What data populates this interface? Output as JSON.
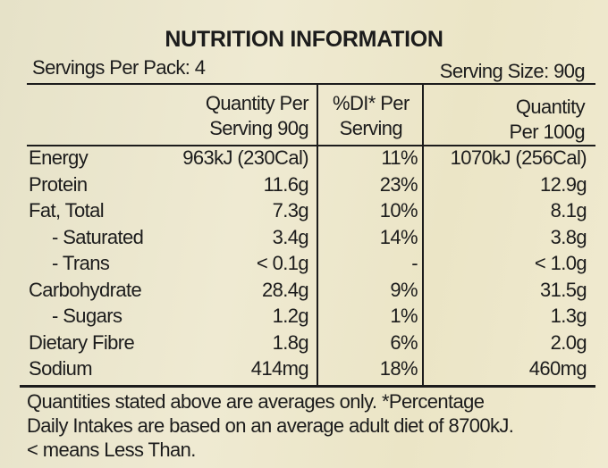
{
  "title": "NUTRITION INFORMATION",
  "servings_per_pack": "Servings Per Pack: 4",
  "serving_size": "Serving Size: 90g",
  "headers": {
    "col1": [
      "Quantity Per",
      "Serving 90g"
    ],
    "col2": [
      "%DI* Per",
      "Serving"
    ],
    "col3": [
      "Quantity",
      "Per 100g"
    ]
  },
  "rows": [
    {
      "label": "Energy",
      "per_serving": "963kJ (230Cal)",
      "di": "11%",
      "per_100g": "1070kJ (256Cal)",
      "sub": false
    },
    {
      "label": "Protein",
      "per_serving": "11.6g",
      "di": "23%",
      "per_100g": "12.9g",
      "sub": false
    },
    {
      "label": "Fat,  Total",
      "per_serving": "7.3g",
      "di": "10%",
      "per_100g": "8.1g",
      "sub": false
    },
    {
      "label": "- Saturated",
      "per_serving": "3.4g",
      "di": "14%",
      "per_100g": "3.8g",
      "sub": true
    },
    {
      "label": "- Trans",
      "per_serving": "< 0.1g",
      "di": "-",
      "per_100g": "< 1.0g",
      "sub": true
    },
    {
      "label": "Carbohydrate",
      "per_serving": "28.4g",
      "di": "9%",
      "per_100g": "31.5g",
      "sub": false
    },
    {
      "label": "- Sugars",
      "per_serving": "1.2g",
      "di": "1%",
      "per_100g": "1.3g",
      "sub": true
    },
    {
      "label": "Dietary Fibre",
      "per_serving": "1.8g",
      "di": "6%",
      "per_100g": "2.0g",
      "sub": false
    },
    {
      "label": "Sodium",
      "per_serving": "414mg",
      "di": "18%",
      "per_100g": "460mg",
      "sub": false
    }
  ],
  "footer": [
    "Quantities stated above are averages only. *Percentage",
    "Daily Intakes are based on an average adult diet of 8700kJ.",
    "< means Less Than."
  ]
}
